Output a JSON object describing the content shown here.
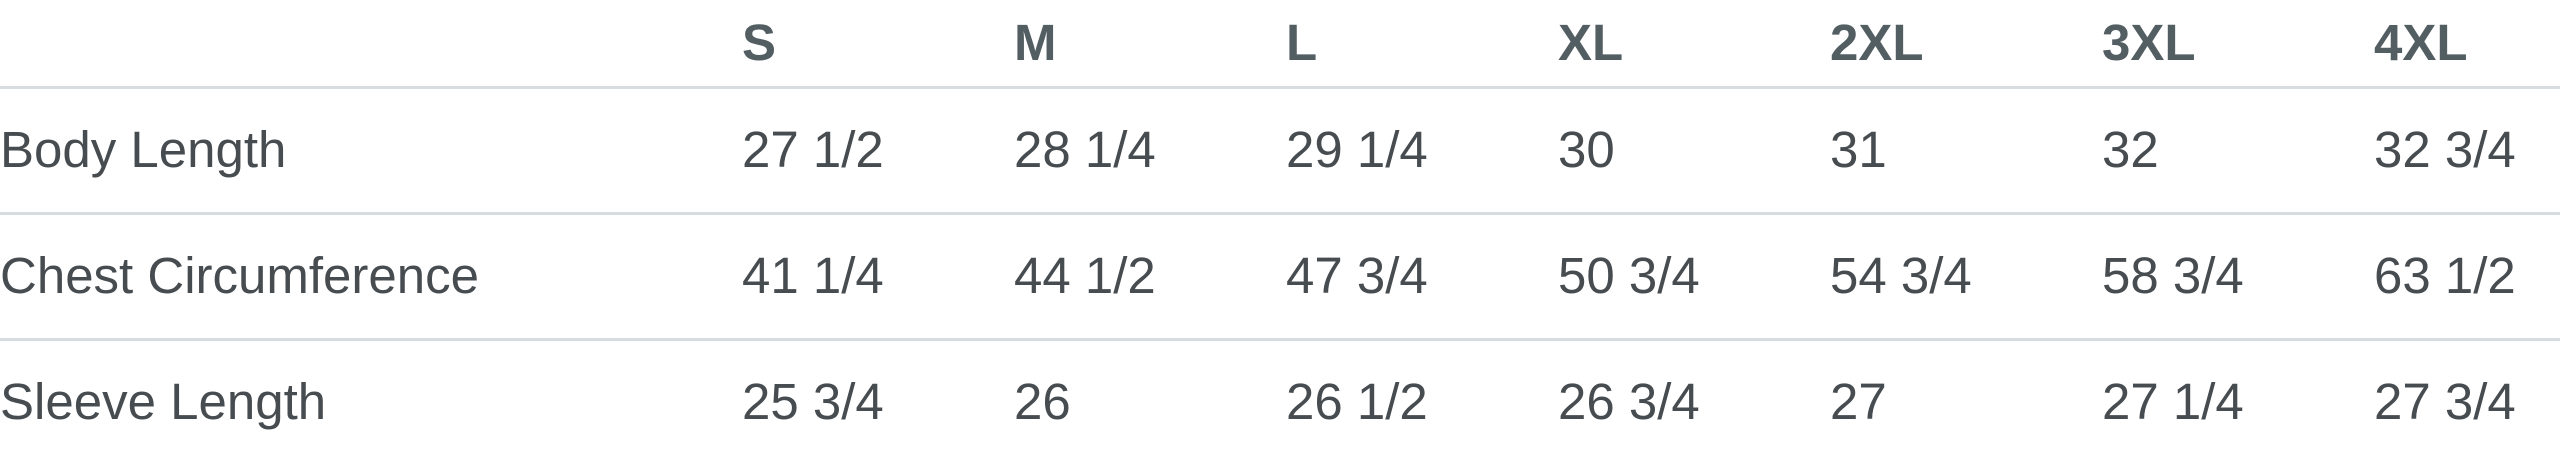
{
  "colors": {
    "header_text": "#535e63",
    "body_text": "#474c50",
    "row_border": "#d6dcdf",
    "background": "#ffffff"
  },
  "chart_data": {
    "type": "table",
    "columns": [
      "",
      "S",
      "M",
      "L",
      "XL",
      "2XL",
      "3XL",
      "4XL"
    ],
    "rows": [
      {
        "label": "Body Length",
        "values": [
          "27 1/2",
          "28 1/4",
          "29 1/4",
          "30",
          "31",
          "32",
          "32 3/4"
        ]
      },
      {
        "label": "Chest Circumference",
        "values": [
          "41 1/4",
          "44 1/2",
          "47 3/4",
          "50 3/4",
          "54 3/4",
          "58 3/4",
          "63 1/2"
        ]
      },
      {
        "label": "Sleeve Length",
        "values": [
          "25 3/4",
          "26",
          "26 1/2",
          "26 3/4",
          "27",
          "27 1/4",
          "27 3/4"
        ]
      }
    ]
  }
}
